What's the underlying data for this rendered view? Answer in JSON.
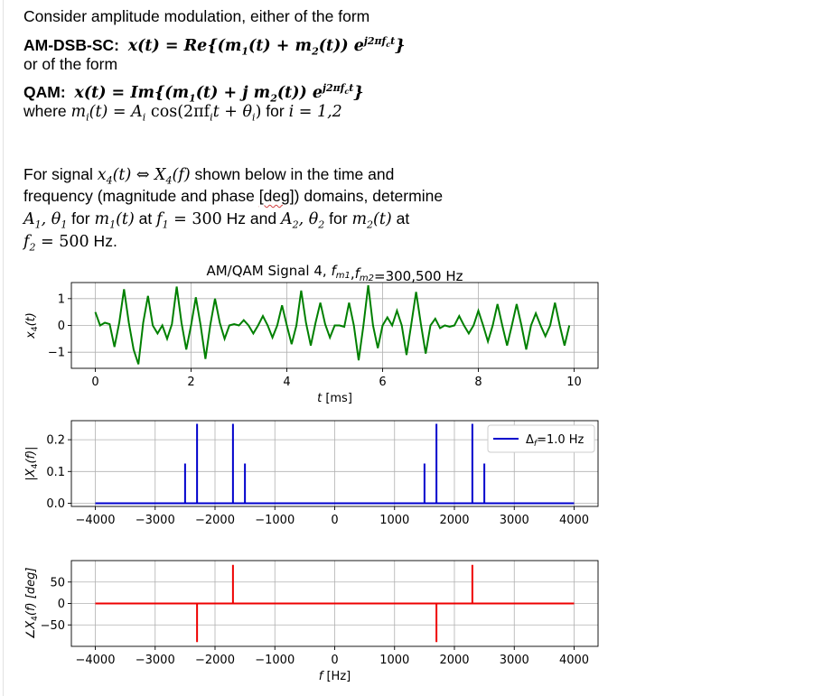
{
  "text": {
    "line1": "Consider amplitude modulation, either of the form",
    "line2_label": "AM-DSB-SC:",
    "line2_eq_a": "x(t) = ",
    "line2_eq_b": "Re",
    "line2_eq_c": "{(m",
    "line2_eq_d": "1",
    "line2_eq_e": "(t) + m",
    "line2_eq_f": "2",
    "line2_eq_g": "(t)) e",
    "line2_eq_h": "j2πf",
    "line2_eq_i": "c",
    "line2_eq_j": "t",
    "line2_eq_k": "}",
    "line3": "or of the form",
    "line4_label": "QAM:",
    "line4_eq_a": "x(t) = ",
    "line4_eq_b": "Im",
    "line4_eq_c": "{(m",
    "line4_eq_d": "1",
    "line4_eq_e": "(t) + j m",
    "line4_eq_f": "2",
    "line4_eq_g": "(t)) e",
    "line4_eq_h": "j2πf",
    "line4_eq_i": "c",
    "line4_eq_j": "t",
    "line4_eq_k": "}",
    "line5_a": "where ",
    "line5_b": "m",
    "line5_c": "i",
    "line5_d": "(t) = A",
    "line5_e": "i",
    "line5_f": " cos(2πf",
    "line5_g": "i",
    "line5_h": "t + θ",
    "line5_i": "i",
    "line5_j": ")",
    "line5_k": " for ",
    "line5_l": "i = 1,2",
    "p1_a": "For signal ",
    "p1_b": "x",
    "p1_c": "4",
    "p1_d": "(t) ⇔ X",
    "p1_e": "4",
    "p1_f": "(f)",
    "p1_g": " shown below in the time and",
    "p2_a": "frequency (magnitude and phase ",
    "p2_b": "[deg]",
    "p2_c": ") domains, determine",
    "p3_a": "A",
    "p3_b": "1",
    "p3_c": ", θ",
    "p3_d": "1",
    "p3_e": " for ",
    "p3_f": "m",
    "p3_g": "1",
    "p3_h": "(t)",
    "p3_i": " at ",
    "p3_j": "f",
    "p3_k": "1",
    "p3_l": " = 300",
    "p3_m": " Hz and ",
    "p3_n": "A",
    "p3_o": "2",
    "p3_p": ", θ",
    "p3_q": "2",
    "p3_r": " for ",
    "p3_s": "m",
    "p3_t": "2",
    "p3_u": "(t)",
    "p3_v": " at",
    "p4_a": "f",
    "p4_b": "2",
    "p4_c": " = 500",
    "p4_d": " Hz."
  },
  "chart_data": [
    {
      "type": "line",
      "title": "AM/QAM Signal 4, f_m1,f_m2=300,500 Hz",
      "xlabel": "t [ms]",
      "ylabel": "x_4(t)",
      "xlim": [
        -0.5,
        10.5
      ],
      "ylim": [
        -1.6,
        1.6
      ],
      "xticks": [
        0,
        2,
        4,
        6,
        8,
        10
      ],
      "yticks": [
        -1,
        0,
        1
      ],
      "grid": true,
      "color": "#008000",
      "series": [
        {
          "x": [
            0.0,
            0.1,
            0.2,
            0.3,
            0.4,
            0.5,
            0.6,
            0.7,
            0.8,
            0.9,
            1.0,
            1.1,
            1.2,
            1.3,
            1.4,
            1.5,
            1.6,
            1.7,
            1.8,
            1.9,
            2.0,
            2.1,
            2.2,
            2.3,
            2.4,
            2.5,
            2.6,
            2.7,
            2.8,
            2.9,
            3.0,
            3.1,
            3.2,
            3.3,
            3.4,
            3.5,
            3.6,
            3.7,
            3.8,
            3.9,
            4.0,
            4.1,
            4.2,
            4.3,
            4.4,
            4.5,
            4.6,
            4.7,
            4.8,
            4.9,
            5.0,
            5.1,
            5.2,
            5.3,
            5.4,
            5.5,
            5.6,
            5.7,
            5.8,
            5.9,
            6.0,
            6.1,
            6.2,
            6.3,
            6.4,
            6.5,
            6.6,
            6.7,
            6.8,
            6.9,
            7.0,
            7.1,
            7.2,
            7.3,
            7.4,
            7.5,
            7.6,
            7.7,
            7.8,
            7.9,
            8.0,
            8.1,
            8.2,
            8.3,
            8.4,
            8.5,
            8.6,
            8.7,
            8.8,
            8.9,
            9.0,
            9.1,
            9.2,
            9.3,
            9.4,
            9.5,
            9.6,
            9.7,
            9.8,
            9.9
          ],
          "y": [
            0.5,
            0.0,
            0.1,
            0.05,
            -0.8,
            0.1,
            1.35,
            0.1,
            -0.9,
            -1.45,
            0.1,
            1.1,
            0.0,
            -0.3,
            0.0,
            -0.5,
            0.05,
            1.45,
            0.1,
            -0.9,
            0.0,
            1.05,
            0.0,
            -1.25,
            0.0,
            1.0,
            0.1,
            -0.5,
            0.0,
            0.05,
            0.0,
            0.2,
            0.0,
            -0.3,
            0.0,
            0.35,
            0.0,
            -0.45,
            0.0,
            0.75,
            0.0,
            -0.7,
            0.0,
            1.3,
            0.1,
            -0.75,
            0.1,
            0.85,
            0.05,
            -0.45,
            0.0,
            0.0,
            -0.05,
            0.85,
            0.0,
            -1.3,
            0.0,
            1.5,
            0.0,
            -0.85,
            0.0,
            0.3,
            0.0,
            0.55,
            0.0,
            -1.1,
            0.05,
            1.25,
            0.05,
            -1.05,
            0.0,
            0.25,
            -0.1,
            0.0,
            -0.05,
            0.0,
            0.35,
            0.0,
            -0.3,
            0.0,
            0.55,
            0.0,
            -0.6,
            0.0,
            0.8,
            0.0,
            -0.75,
            0.0,
            0.8,
            0.0,
            -0.9,
            0.0,
            0.45,
            0.0,
            -0.4,
            0.0,
            0.85,
            0.0,
            -0.75,
            0.0
          ]
        }
      ]
    },
    {
      "type": "line",
      "xlabel": "",
      "ylabel": "|X_4(f)|",
      "xlim": [
        -4400,
        4400
      ],
      "ylim": [
        -0.01,
        0.26
      ],
      "xticks": [
        -4000,
        -3000,
        -2000,
        -1000,
        0,
        1000,
        2000,
        3000,
        4000
      ],
      "yticks": [
        0.0,
        0.1,
        0.2
      ],
      "yticklabels": [
        "0.0",
        "0.1",
        "0.2"
      ],
      "grid": true,
      "legend": "top-right",
      "legend_label": "Δ_f=1.0 Hz",
      "baseline_range": [
        -4000,
        4000
      ],
      "color": "#0000cc",
      "stems": [
        {
          "x": -2500,
          "y": 0.125
        },
        {
          "x": -2300,
          "y": 0.25
        },
        {
          "x": -1700,
          "y": 0.25
        },
        {
          "x": -1500,
          "y": 0.125
        },
        {
          "x": 1500,
          "y": 0.125
        },
        {
          "x": 1700,
          "y": 0.25
        },
        {
          "x": 2300,
          "y": 0.25
        },
        {
          "x": 2500,
          "y": 0.125
        }
      ]
    },
    {
      "type": "line",
      "xlabel": "f [Hz]",
      "ylabel": "∠X_4(f) [deg]",
      "xlim": [
        -4400,
        4400
      ],
      "ylim": [
        -100,
        100
      ],
      "xticks": [
        -4000,
        -3000,
        -2000,
        -1000,
        0,
        1000,
        2000,
        3000,
        4000
      ],
      "yticks": [
        -50,
        0,
        50
      ],
      "grid": true,
      "baseline_range": [
        -4000,
        4000
      ],
      "color": "#ee0000",
      "stems": [
        {
          "x": -2300,
          "y": -90
        },
        {
          "x": -1700,
          "y": 90
        },
        {
          "x": 1700,
          "y": -90
        },
        {
          "x": 2300,
          "y": 90
        }
      ]
    }
  ]
}
